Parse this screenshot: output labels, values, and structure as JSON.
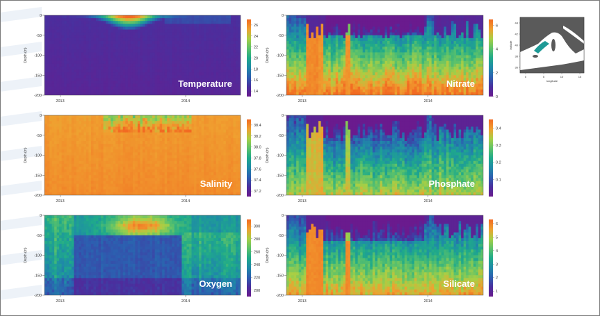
{
  "colors": {
    "scale": [
      "#6a1b8e",
      "#4a2f9e",
      "#2c5fb0",
      "#1f8aa8",
      "#1faa8a",
      "#5ec26a",
      "#a8cf45",
      "#f0a030",
      "#f26b22"
    ],
    "background_lines": "#dfe7f2",
    "land": "#5a5a5a",
    "sea": "#ffffff",
    "region": "#1e9a96"
  },
  "chart_data": [
    {
      "id": "temperature",
      "type": "heatmap",
      "label": "Temperature",
      "ylabel": "Depth (m)",
      "x_ticks": [
        "2013",
        "2014"
      ],
      "y_ticks": [
        "0",
        "-50",
        "-100",
        "-150",
        "-200"
      ],
      "ylim": [
        -200,
        0
      ],
      "colorbar_ticks": [
        "26",
        "24",
        "22",
        "20",
        "18",
        "16",
        "14"
      ],
      "colorbar_range": [
        13,
        27
      ]
    },
    {
      "id": "nitrate",
      "type": "heatmap",
      "label": "Nitrate",
      "ylabel": "Depth (m)",
      "x_ticks": [
        "2013",
        "2014"
      ],
      "y_ticks": [
        "0",
        "-50",
        "-100",
        "-150",
        "-200"
      ],
      "ylim": [
        -200,
        0
      ],
      "colorbar_ticks": [
        "6",
        "4",
        "2",
        "0"
      ],
      "colorbar_range": [
        0,
        6.5
      ]
    },
    {
      "id": "salinity",
      "type": "heatmap",
      "label": "Salinity",
      "ylabel": "Depth (m)",
      "x_ticks": [
        "2013",
        "2014"
      ],
      "y_ticks": [
        "0",
        "-50",
        "-100",
        "-150",
        "-200"
      ],
      "ylim": [
        -200,
        0
      ],
      "colorbar_ticks": [
        "38.4",
        "38.2",
        "38.0",
        "37.8",
        "37.6",
        "37.4",
        "37.2"
      ],
      "colorbar_range": [
        37.1,
        38.5
      ]
    },
    {
      "id": "phosphate",
      "type": "heatmap",
      "label": "Phosphate",
      "ylabel": "Depth (m)",
      "x_ticks": [
        "2013",
        "2014"
      ],
      "y_ticks": [
        "0",
        "-50",
        "-100",
        "-150",
        "-200"
      ],
      "ylim": [
        -200,
        0
      ],
      "colorbar_ticks": [
        "0.4",
        "0.3",
        "0.2",
        "0.1"
      ],
      "colorbar_range": [
        0,
        0.45
      ]
    },
    {
      "id": "oxygen",
      "type": "heatmap",
      "label": "Oxygen",
      "ylabel": "Depth (m)",
      "x_ticks": [
        "2013",
        "2014"
      ],
      "y_ticks": [
        "0",
        "-50",
        "-100",
        "-150",
        "-200"
      ],
      "ylim": [
        -200,
        0
      ],
      "colorbar_ticks": [
        "300",
        "280",
        "260",
        "240",
        "220",
        "200"
      ],
      "colorbar_range": [
        190,
        310
      ]
    },
    {
      "id": "silicate",
      "type": "heatmap",
      "label": "Silicate",
      "ylabel": "Depth (m)",
      "x_ticks": [
        "2013",
        "2014"
      ],
      "y_ticks": [
        "0",
        "-50",
        "-100",
        "-150",
        "-200"
      ],
      "ylim": [
        -200,
        0
      ],
      "colorbar_ticks": [
        "6",
        "5",
        "4",
        "3",
        "2",
        "1"
      ],
      "colorbar_range": [
        0.6,
        6.3
      ]
    }
  ],
  "map": {
    "xlabel": "longitude",
    "ylabel": "latitude",
    "x_ticks": [
      "0",
      "5",
      "10",
      "15"
    ],
    "y_ticks": [
      "36",
      "38",
      "40",
      "42",
      "44"
    ]
  }
}
